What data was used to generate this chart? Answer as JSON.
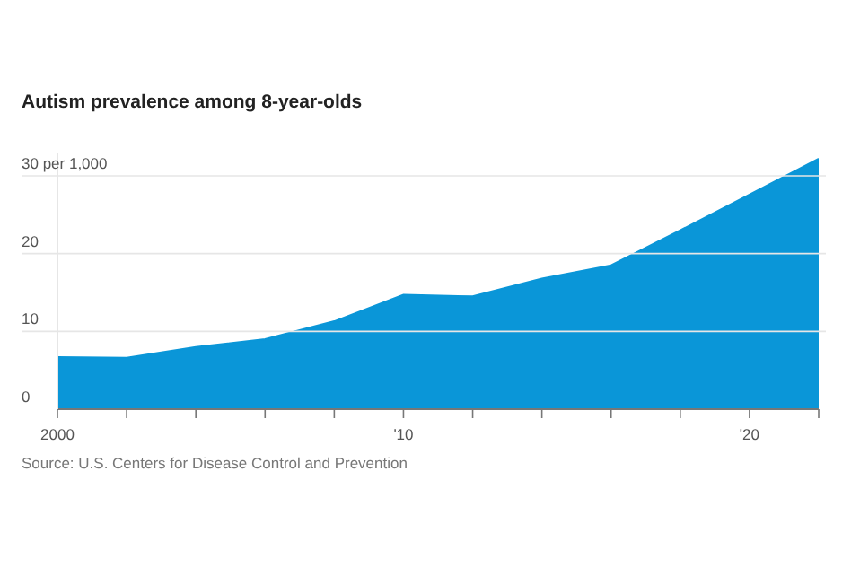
{
  "chart_data": {
    "type": "area",
    "title": "Autism prevalence among 8-year-olds",
    "x": [
      2000,
      2002,
      2004,
      2006,
      2008,
      2010,
      2012,
      2014,
      2016,
      2018,
      2020,
      2022
    ],
    "values": [
      6.7,
      6.6,
      8.0,
      9.0,
      11.3,
      14.7,
      14.5,
      16.8,
      18.5,
      23.0,
      27.6,
      32.2
    ],
    "color": "#0a96d8",
    "xlim": [
      2000,
      2022
    ],
    "xticks": [
      2000,
      {
        "value": 2002,
        "label": null
      },
      {
        "value": 2004,
        "label": null
      },
      {
        "value": 2006,
        "label": null
      },
      {
        "value": 2008,
        "label": null
      },
      {
        "value": 2010,
        "label": "'10"
      },
      {
        "value": 2012,
        "label": null
      },
      {
        "value": 2014,
        "label": null
      },
      {
        "value": 2016,
        "label": null
      },
      {
        "value": 2018,
        "label": null
      },
      {
        "value": 2020,
        "label": "'20"
      },
      {
        "value": 2022,
        "label": null
      }
    ],
    "ylim": [
      0,
      33
    ],
    "yticks": [
      0,
      10,
      20,
      {
        "value": 30,
        "label": "30 per 1,000"
      }
    ],
    "grid": "y",
    "annotations": [
      "Source: U.S. Centers for Disease Control and Prevention"
    ]
  }
}
